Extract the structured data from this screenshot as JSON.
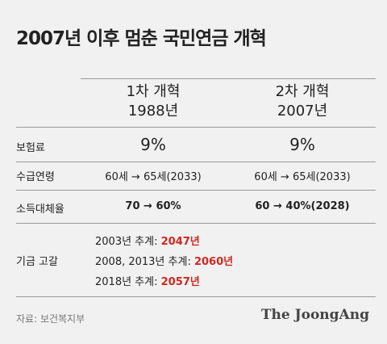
{
  "header": {
    "title": "2007년 이후 멈춘 국민연금 개혁"
  },
  "table": {
    "columns": [
      {
        "name": "1차 개혁",
        "year": "1988년"
      },
      {
        "name": "2차 개혁",
        "year": "2007년"
      }
    ],
    "rows": [
      {
        "label": "보험료",
        "cells": [
          "9%",
          "9%"
        ]
      },
      {
        "label": "수급연령",
        "cells": [
          "60세 → 65세(2033)",
          "60세 → 65세(2033)"
        ]
      },
      {
        "label": "소득대체율",
        "cells": [
          "70 → 60%",
          "60 → 40%(2028)"
        ]
      }
    ],
    "depletion": {
      "label": "기금 고갈",
      "items": [
        {
          "estimate": "2003년 추계:",
          "year": "2047년"
        },
        {
          "estimate": "2008, 2013년 추계:",
          "year": "2060년"
        },
        {
          "estimate": "2018년 추계:",
          "year": "2057년"
        }
      ]
    }
  },
  "footer": {
    "source": "자료: 보건복지부",
    "brand": "The JoongAng"
  }
}
